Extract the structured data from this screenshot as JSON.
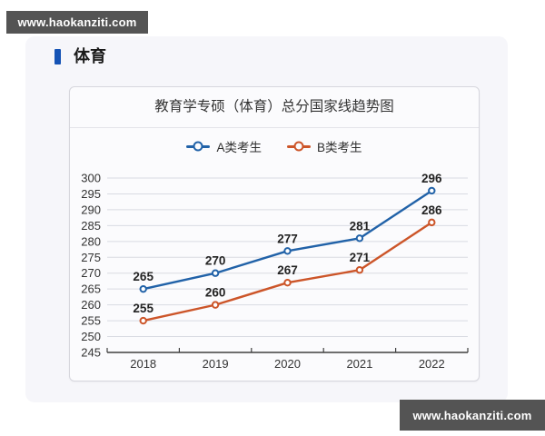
{
  "watermarks": {
    "top_left": "www.haokanziti.com",
    "bottom_right": "www.haokanziti.com"
  },
  "section": {
    "title": "体育"
  },
  "colors": {
    "accent_bar": "#1553b5",
    "series_a": "#2162a8",
    "series_b": "#cc5529",
    "grid_line": "#d9dbe2",
    "axis_line": "#3f3f3f",
    "tick_label": "#333333",
    "data_label": "#232323",
    "panel_bg": "#f6f6fa",
    "card_bg": "#fbfbfd",
    "watermark_bg": "#545454"
  },
  "chart_data": {
    "type": "line",
    "title": "教育学专硕（体育）总分国家线趋势图",
    "categories": [
      "2018",
      "2019",
      "2020",
      "2021",
      "2022"
    ],
    "series": [
      {
        "name": "A类考生",
        "color": "#2162a8",
        "values": [
          265,
          270,
          277,
          281,
          296
        ]
      },
      {
        "name": "B类考生",
        "color": "#cc5529",
        "values": [
          255,
          260,
          267,
          271,
          286
        ]
      }
    ],
    "xlabel": "",
    "ylabel": "",
    "ylim": [
      245,
      300
    ],
    "ytick_step": 5,
    "grid": true,
    "legend_position": "top",
    "marker": "open-circle",
    "data_labels": true
  }
}
